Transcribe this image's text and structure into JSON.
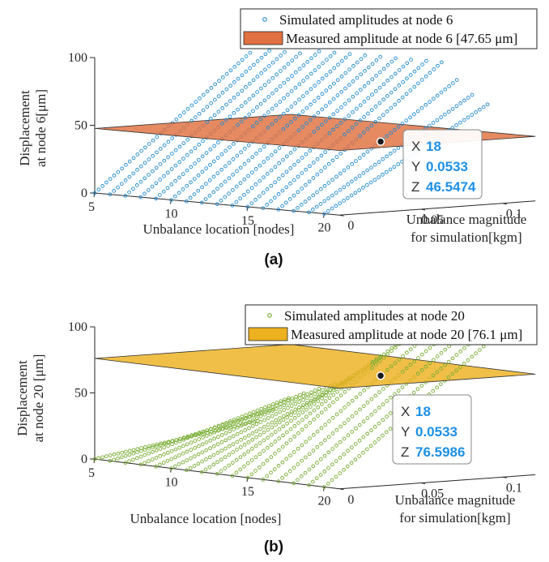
{
  "panels": [
    {
      "caption": "(a)",
      "chart_data": {
        "type": "scatter",
        "projection": "3d",
        "xlabel": "Unbalance location [nodes]",
        "ylabel_lines": [
          "Unbalance magnitude",
          "for simulation[kgm]"
        ],
        "zlabel_lines": [
          "Displacement",
          "at node 6[μm]"
        ],
        "xticks": [
          "5",
          "10",
          "15",
          "20"
        ],
        "yticks": [
          "0",
          "0.05",
          "0.1"
        ],
        "zticks": [
          "0",
          "50",
          "100"
        ],
        "xlim": [
          5,
          21
        ],
        "ylim": [
          0,
          0.12
        ],
        "zlim": [
          0,
          100
        ],
        "x": [
          5,
          6,
          7,
          8,
          9,
          10,
          11,
          12,
          13,
          14,
          15,
          16,
          17,
          18,
          19,
          20
        ],
        "y_range": [
          0,
          0.1
        ],
        "z_at_y_max": [
          100,
          100,
          100,
          100,
          100,
          100,
          100,
          100,
          100,
          100,
          100,
          100,
          100,
          88,
          78,
          72
        ],
        "legend": [
          {
            "label": "Simulated amplitudes at node 6",
            "marker": "circle",
            "color": "#1f8ad0"
          },
          {
            "label": "Measured amplitude at node 6 [47.65 μm]",
            "marker": "patch",
            "color": "#e07040"
          }
        ],
        "plane_z": 47.65,
        "marker_color": "#1f8ad0",
        "plane_color": "#e07040",
        "datatip": {
          "X": "18",
          "Y": "0.0533",
          "Z": "46.5474"
        }
      }
    },
    {
      "caption": "(b)",
      "chart_data": {
        "type": "scatter",
        "projection": "3d",
        "xlabel": "Unbalance location [nodes]",
        "ylabel_lines": [
          "Unbalance magnitude",
          "for simulation[kgm]"
        ],
        "zlabel_lines": [
          "Displacement",
          "at node 20 [μm]"
        ],
        "xticks": [
          "5",
          "10",
          "15",
          "20"
        ],
        "yticks": [
          "0",
          "0.05",
          "0.1"
        ],
        "zticks": [
          "0",
          "50",
          "100"
        ],
        "xlim": [
          5,
          21
        ],
        "ylim": [
          0,
          0.12
        ],
        "zlim": [
          0,
          100
        ],
        "x": [
          5,
          6,
          7,
          8,
          9,
          10,
          11,
          12,
          13,
          14,
          15,
          16,
          17,
          18,
          19,
          20
        ],
        "y_range": [
          0,
          0.1
        ],
        "z_at_y_max": [
          20,
          30,
          40,
          45,
          50,
          55,
          60,
          70,
          80,
          90,
          100,
          100,
          100,
          100,
          100,
          100
        ],
        "legend": [
          {
            "label": "Simulated amplitudes at node 20",
            "marker": "circle",
            "color": "#77ac30"
          },
          {
            "label": "Measured amplitude at node 20 [76.1 μm]",
            "marker": "patch",
            "color": "#edb120"
          }
        ],
        "plane_z": 76.1,
        "marker_color": "#77ac30",
        "plane_color": "#edb120",
        "datatip": {
          "X": "18",
          "Y": "0.0533",
          "Z": "76.5986"
        }
      }
    }
  ]
}
